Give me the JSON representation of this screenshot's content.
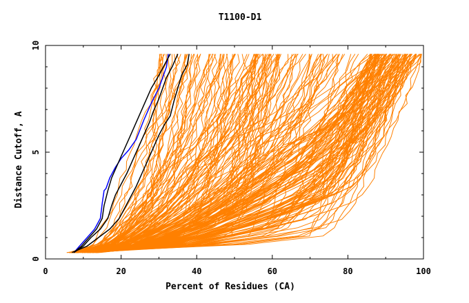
{
  "chart_data": {
    "type": "line",
    "title": "T1100-D1",
    "xlabel": "Percent of Residues (CA)",
    "ylabel": "Distance Cutoff, A",
    "xlim": [
      0,
      100
    ],
    "ylim": [
      0,
      10
    ],
    "x_ticks": [
      0,
      20,
      40,
      60,
      80,
      100
    ],
    "y_ticks": [
      0,
      5,
      10
    ],
    "grid": false,
    "legend": "none",
    "background_series_color": "#ff8000",
    "background_series_count": 220,
    "series": [
      {
        "color": "#0000ff",
        "points": [
          [
            7.5,
            0.3
          ],
          [
            9,
            0.6
          ],
          [
            11,
            1.0
          ],
          [
            13,
            1.4
          ],
          [
            14.5,
            1.9
          ],
          [
            15,
            2.6
          ],
          [
            15.5,
            3.2
          ],
          [
            16,
            3.3
          ],
          [
            17,
            3.8
          ],
          [
            18.5,
            4.3
          ],
          [
            20,
            4.7
          ],
          [
            22,
            5.1
          ],
          [
            24,
            5.6
          ],
          [
            26,
            6.5
          ],
          [
            28,
            7.3
          ],
          [
            30,
            8.0
          ],
          [
            31,
            8.5
          ],
          [
            32,
            9.0
          ],
          [
            32.5,
            9.6
          ]
        ]
      },
      {
        "color": "#000000",
        "points": [
          [
            7.5,
            0.3
          ],
          [
            9.5,
            0.6
          ],
          [
            11.5,
            1.0
          ],
          [
            13.5,
            1.4
          ],
          [
            15,
            1.9
          ],
          [
            15.5,
            2.5
          ],
          [
            16.5,
            3.2
          ],
          [
            17.5,
            3.8
          ],
          [
            19,
            4.4
          ],
          [
            20.5,
            5.0
          ],
          [
            22,
            5.6
          ],
          [
            23.5,
            6.2
          ],
          [
            25,
            6.8
          ],
          [
            26.5,
            7.4
          ],
          [
            28,
            8.0
          ],
          [
            30,
            8.6
          ],
          [
            31.5,
            9.1
          ],
          [
            33,
            9.6
          ]
        ]
      },
      {
        "color": "#000000",
        "points": [
          [
            7.5,
            0.3
          ],
          [
            10,
            0.6
          ],
          [
            12,
            1.0
          ],
          [
            14.5,
            1.4
          ],
          [
            16.5,
            1.9
          ],
          [
            17.5,
            2.5
          ],
          [
            18.5,
            3.0
          ],
          [
            20,
            3.5
          ],
          [
            21.5,
            4.0
          ],
          [
            23,
            4.6
          ],
          [
            24.5,
            5.2
          ],
          [
            26,
            5.8
          ],
          [
            27.5,
            6.4
          ],
          [
            28.5,
            6.9
          ],
          [
            30,
            7.5
          ],
          [
            31,
            8.0
          ],
          [
            32,
            8.5
          ],
          [
            33.5,
            9.0
          ],
          [
            35,
            9.6
          ]
        ]
      },
      {
        "color": "#000000",
        "points": [
          [
            7,
            0.3
          ],
          [
            11,
            0.6
          ],
          [
            14,
            1.0
          ],
          [
            17,
            1.4
          ],
          [
            19.5,
            1.9
          ],
          [
            21,
            2.4
          ],
          [
            22.5,
            2.9
          ],
          [
            24,
            3.4
          ],
          [
            25.5,
            4.0
          ],
          [
            27,
            4.6
          ],
          [
            28.5,
            5.2
          ],
          [
            30,
            5.8
          ],
          [
            31.5,
            6.3
          ],
          [
            33,
            6.7
          ],
          [
            34,
            7.4
          ],
          [
            35,
            8.0
          ],
          [
            36,
            8.6
          ],
          [
            37.5,
            9.1
          ],
          [
            38,
            9.6
          ]
        ]
      }
    ]
  }
}
